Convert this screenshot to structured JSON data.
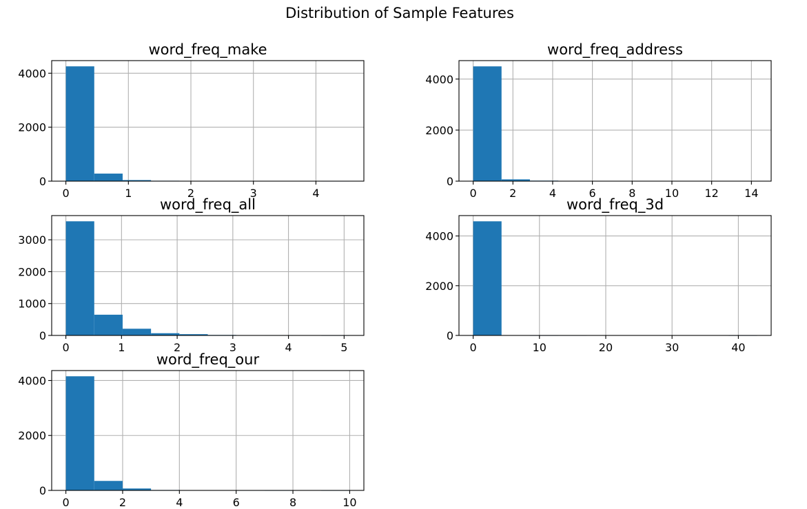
{
  "chart_data": {
    "suptitle": "Distribution of Sample Features",
    "type": "histogram-grid",
    "layout": "3x2",
    "color": "#1f77b4",
    "grid": true,
    "subplots": [
      {
        "title": "word_freq_make",
        "type": "bar",
        "bin_edges": [
          0,
          0.454,
          0.908,
          1.362,
          1.816,
          2.27,
          2.724,
          3.178,
          3.632,
          4.086,
          4.54
        ],
        "counts": [
          4255,
          280,
          40,
          15,
          10,
          8,
          5,
          0,
          0,
          2
        ],
        "xlim": [
          -0.227,
          4.767
        ],
        "ylim": [
          0,
          4467
        ],
        "xticks": [
          0,
          1,
          2,
          3,
          4
        ],
        "yticks": [
          0,
          2000,
          4000
        ],
        "xtick_labels": [
          "0",
          "1",
          "2",
          "3",
          "4"
        ],
        "ytick_labels": [
          "0",
          "2000",
          "4000"
        ]
      },
      {
        "title": "word_freq_address",
        "type": "bar",
        "bin_edges": [
          0,
          1.428,
          2.856,
          4.284,
          5.712,
          7.14,
          8.568,
          9.996,
          11.424,
          12.852,
          14.28
        ],
        "counts": [
          4498,
          70,
          20,
          3,
          0,
          0,
          0,
          0,
          0,
          10
        ],
        "xlim": [
          -0.714,
          14.994
        ],
        "ylim": [
          0,
          4723
        ],
        "xticks": [
          0,
          2,
          4,
          6,
          8,
          10,
          12,
          14
        ],
        "yticks": [
          0,
          2000,
          4000
        ],
        "xtick_labels": [
          "0",
          "2",
          "4",
          "6",
          "8",
          "10",
          "12",
          "14"
        ],
        "ytick_labels": [
          "0",
          "2000",
          "4000"
        ]
      },
      {
        "title": "word_freq_all",
        "type": "bar",
        "bin_edges": [
          0,
          0.51,
          1.02,
          1.53,
          2.04,
          2.55,
          3.06,
          3.57,
          4.08,
          4.59,
          5.1
        ],
        "counts": [
          3580,
          650,
          210,
          70,
          40,
          15,
          3,
          2,
          0,
          1
        ],
        "xlim": [
          -0.255,
          5.355
        ],
        "ylim": [
          0,
          3759
        ],
        "xticks": [
          0,
          1,
          2,
          3,
          4,
          5
        ],
        "yticks": [
          0,
          1000,
          2000,
          3000
        ],
        "xtick_labels": [
          "0",
          "1",
          "2",
          "3",
          "4",
          "5"
        ],
        "ytick_labels": [
          "0",
          "1000",
          "2000",
          "3000"
        ]
      },
      {
        "title": "word_freq_3d",
        "type": "bar",
        "bin_edges": [
          0,
          4.281,
          8.562,
          12.843,
          17.124,
          21.405,
          25.686,
          29.967,
          34.248,
          38.529,
          42.81
        ],
        "counts": [
          4590,
          3,
          1,
          2,
          0,
          0,
          0,
          0,
          0,
          1
        ],
        "xlim": [
          -2.14,
          44.95
        ],
        "ylim": [
          0,
          4820
        ],
        "xticks": [
          0,
          10,
          20,
          30,
          40
        ],
        "yticks": [
          0,
          2000,
          4000
        ],
        "xtick_labels": [
          "0",
          "10",
          "20",
          "30",
          "40"
        ],
        "ytick_labels": [
          "0",
          "2000",
          "4000"
        ]
      },
      {
        "title": "word_freq_our",
        "type": "bar",
        "bin_edges": [
          0,
          1,
          2,
          3,
          4,
          5,
          6,
          7,
          8,
          9,
          10
        ],
        "counts": [
          4155,
          345,
          70,
          15,
          8,
          4,
          2,
          1,
          0,
          1
        ],
        "xlim": [
          -0.5,
          10.5
        ],
        "ylim": [
          0,
          4363
        ],
        "xticks": [
          0,
          2,
          4,
          6,
          8,
          10
        ],
        "yticks": [
          0,
          2000,
          4000
        ],
        "xtick_labels": [
          "0",
          "2",
          "4",
          "6",
          "8",
          "10"
        ],
        "ytick_labels": [
          "0",
          "2000",
          "4000"
        ]
      }
    ]
  }
}
